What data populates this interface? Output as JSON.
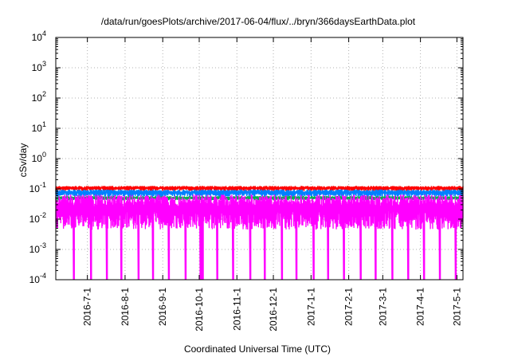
{
  "chart_data": {
    "type": "line",
    "title": "/data/run/goesPlots/archive/2017-06-04/flux/../bryn/366daysEarthData.plot",
    "xlabel": "Coordinated Universal Time (UTC)",
    "ylabel": "cSv/day",
    "yscale": "log",
    "ylim": [
      0.0001,
      10000
    ],
    "xlim": [
      "2016-06-05",
      "2017-05-06"
    ],
    "grid": true,
    "y_ticks": [
      {
        "value": 0.0001,
        "base": "10",
        "exp": "-4"
      },
      {
        "value": 0.001,
        "base": "10",
        "exp": "-3"
      },
      {
        "value": 0.01,
        "base": "10",
        "exp": "-2"
      },
      {
        "value": 0.1,
        "base": "10",
        "exp": "-1"
      },
      {
        "value": 1,
        "base": "10",
        "exp": "0"
      },
      {
        "value": 10,
        "base": "10",
        "exp": "1"
      },
      {
        "value": 100,
        "base": "10",
        "exp": "2"
      },
      {
        "value": 1000,
        "base": "10",
        "exp": "3"
      },
      {
        "value": 10000,
        "base": "10",
        "exp": "4"
      }
    ],
    "x_ticks": [
      {
        "date": "2016-07-01",
        "label": "2016-7-1"
      },
      {
        "date": "2016-08-01",
        "label": "2016-8-1"
      },
      {
        "date": "2016-09-01",
        "label": "2016-9-1"
      },
      {
        "date": "2016-10-01",
        "label": "2016-10-1"
      },
      {
        "date": "2016-11-01",
        "label": "2016-11-1"
      },
      {
        "date": "2016-12-01",
        "label": "2016-12-1"
      },
      {
        "date": "2017-01-01",
        "label": "2017-1-1"
      },
      {
        "date": "2017-02-01",
        "label": "2017-2-1"
      },
      {
        "date": "2017-03-01",
        "label": "2017-3-1"
      },
      {
        "date": "2017-04-01",
        "label": "2017-4-1"
      },
      {
        "date": "2017-05-01",
        "label": "2017-5-1"
      }
    ],
    "series": [
      {
        "color": "#ff0000",
        "typical": 0.1,
        "spread_low": 0.085,
        "spread_high": 0.125
      },
      {
        "color": "#0080ff",
        "typical": 0.075,
        "spread_low": 0.055,
        "spread_high": 0.095
      },
      {
        "color": "#00b050",
        "typical": 0.05,
        "spread_low": 0.042,
        "spread_high": 0.058
      },
      {
        "color": "#ff00ff",
        "typical": 0.02,
        "spread_low": 0.0045,
        "spread_high": 0.065,
        "dropouts_to": 0.0001
      }
    ],
    "dropout_dates": [
      "2016-06-20",
      "2016-07-04",
      "2016-07-17",
      "2016-07-29",
      "2016-08-12",
      "2016-08-24",
      "2016-09-06",
      "2016-09-20",
      "2016-10-02",
      "2016-10-03",
      "2016-10-04",
      "2016-10-16",
      "2016-10-29",
      "2016-11-12",
      "2016-11-24",
      "2016-12-08",
      "2016-12-20",
      "2017-01-03",
      "2017-01-15",
      "2017-01-28",
      "2017-02-11",
      "2017-02-23",
      "2017-03-09",
      "2017-03-22",
      "2017-04-04",
      "2017-04-17",
      "2017-04-30"
    ]
  }
}
